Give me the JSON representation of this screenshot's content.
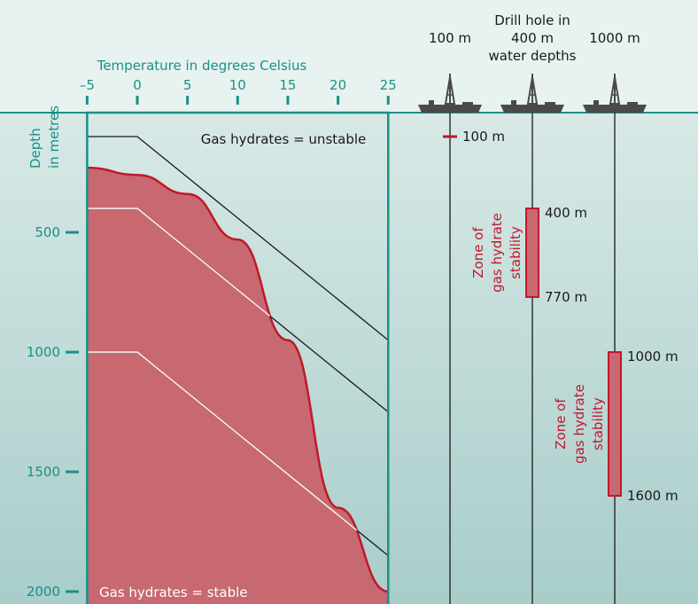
{
  "top_axis": {
    "title": "Temperature in degrees Celsius",
    "ticks": [
      -5,
      0,
      5,
      10,
      15,
      20,
      25
    ],
    "tick_labels": [
      "–5",
      "0",
      "5",
      "10",
      "15",
      "20",
      "25"
    ]
  },
  "left_axis": {
    "title_line1": "Depth",
    "title_line2": "in metres",
    "ticks": [
      500,
      1000,
      1500,
      2000
    ],
    "tick_labels": [
      "500",
      "1000",
      "1500",
      "2000"
    ]
  },
  "drill_header": {
    "line1": "Drill hole in",
    "line2": "water depths",
    "columns": [
      "100 m",
      "400 m",
      "1000 m"
    ]
  },
  "annotations": {
    "unstable": "Gas hydrates = unstable",
    "stable": "Gas hydrates = stable"
  },
  "drill_holes": [
    {
      "water_depth_label": "100 m",
      "water_depth": 100,
      "zone_top": null,
      "zone_bottom": null,
      "zone_label": [],
      "depth_labels": [
        "100 m"
      ]
    },
    {
      "water_depth_label": "400 m",
      "water_depth": 400,
      "zone_top": 400,
      "zone_bottom": 770,
      "zone_label": [
        "Zone of",
        "gas hydrate",
        "stability"
      ],
      "depth_labels": [
        "400 m",
        "770 m"
      ]
    },
    {
      "water_depth_label": "1000 m",
      "water_depth": 1000,
      "zone_top": 1000,
      "zone_bottom": 1600,
      "zone_label": [
        "Zone of",
        "gas hydrate",
        "stability"
      ],
      "depth_labels": [
        "1000 m",
        "1600 m"
      ]
    }
  ],
  "stability_curve": {
    "points": [
      [
        -5,
        230
      ],
      [
        0,
        260
      ],
      [
        5,
        340
      ],
      [
        10,
        530
      ],
      [
        15,
        950
      ],
      [
        20,
        1650
      ],
      [
        25,
        2000
      ]
    ]
  },
  "temperature_profiles": [
    {
      "water_depth": 100,
      "points": [
        [
          -5,
          100
        ],
        [
          0,
          100
        ],
        [
          25,
          950
        ]
      ]
    },
    {
      "water_depth": 400,
      "points": [
        [
          -5,
          400
        ],
        [
          0,
          400
        ],
        [
          25,
          1250
        ]
      ]
    },
    {
      "water_depth": 1000,
      "points": [
        [
          -5,
          1000
        ],
        [
          0,
          1000
        ],
        [
          25,
          1850
        ]
      ]
    }
  ],
  "colors": {
    "teal": "#1a9088",
    "red": "#c0182a",
    "zone_fill": "#c86870",
    "water_top": "#d8e9e6",
    "water_bottom": "#a8cdca",
    "sky": "#e8f2f0",
    "ship": "#4a4a4a"
  }
}
